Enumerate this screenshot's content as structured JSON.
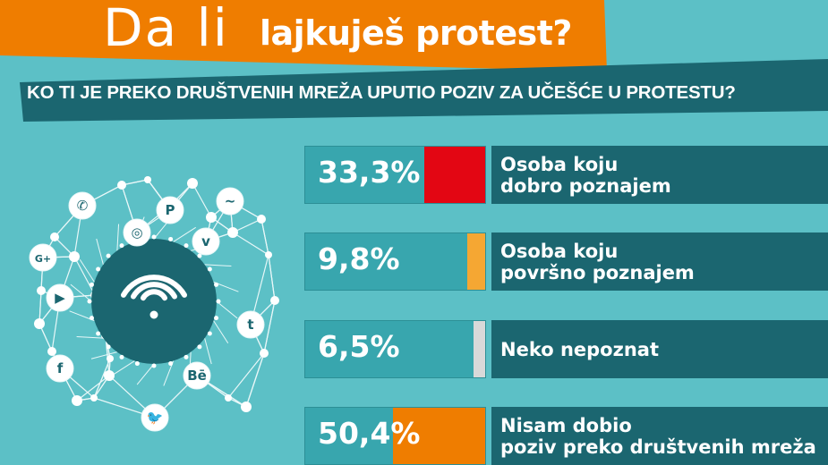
{
  "header": {
    "title_light": "Da li",
    "title_bold": "lajkuješ protest?",
    "question": "KO TI JE PREKO DRUŠTVENIH MREŽA UPUTIO POZIV ZA UČEŠĆE U PROTESTU?"
  },
  "colors": {
    "background": "#5cc0c6",
    "dark_teal": "#1b6670",
    "bar_base": "#38a6ae",
    "header_orange": "#ef7d00"
  },
  "illustration": {
    "center_icon": "wifi-icon",
    "icons": [
      "whatsapp-icon",
      "pinterest-icon",
      "messenger-icon",
      "instagram-icon",
      "vimeo-icon",
      "google-plus-icon",
      "youtube-icon",
      "tumblr-icon",
      "facebook-icon",
      "behance-icon",
      "twitter-icon"
    ]
  },
  "chart_data": {
    "type": "bar",
    "title": "KO TI JE PREKO DRUŠTVENIH MREŽA UPUTIO POZIV ZA UČEŠĆE U PROTESTU?",
    "categories": [
      "Osoba koju\ndobro poznajem",
      "Osoba koju\npovršno poznajem",
      "Neko nepoznat",
      "Nisam dobio\npoziv preko društvenih mreža"
    ],
    "values": [
      33.3,
      9.8,
      6.5,
      50.4
    ],
    "value_labels": [
      "33,3%",
      "9,8%",
      "6,5%",
      "50,4%"
    ],
    "colors": [
      "#e30613",
      "#f5a733",
      "#d9d9d9",
      "#ef7d00"
    ],
    "ylim": [
      0,
      100
    ]
  }
}
